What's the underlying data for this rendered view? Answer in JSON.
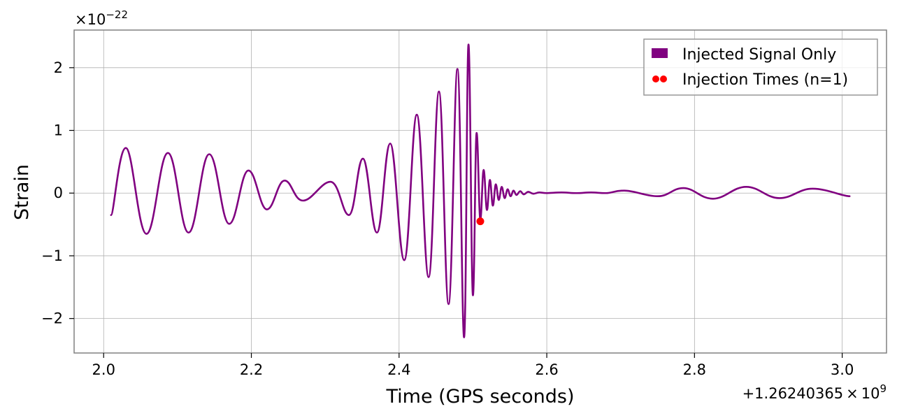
{
  "chart_data": {
    "type": "line",
    "title": "",
    "xlabel": "Time (GPS seconds)",
    "ylabel": "Strain",
    "x_offset_label": "+1.26240365",
    "x_offset_times": "×",
    "x_offset_base": "10",
    "x_offset_exp": "9",
    "y_scale_prefix": "×10",
    "y_scale_exp": "−22",
    "xlim": [
      1.96,
      3.06
    ],
    "ylim": [
      -2.55,
      2.6
    ],
    "xticks": [
      2.0,
      2.2,
      2.4,
      2.6,
      2.8,
      3.0
    ],
    "xtick_labels": [
      "2.0",
      "2.2",
      "2.4",
      "2.6",
      "2.8",
      "3.0"
    ],
    "yticks": [
      -2,
      -1,
      0,
      1,
      2
    ],
    "ytick_labels": [
      "−2",
      "−1",
      "0",
      "1",
      "2"
    ],
    "grid": true,
    "legend_position": "top-right",
    "colors": {
      "signal": "#800080",
      "injection": "#ff0000",
      "grid": "#b0b0b0",
      "frame": "#808080"
    },
    "series": [
      {
        "name": "Injected Signal Only",
        "x": [
          2.01,
          2.03,
          2.058,
          2.087,
          2.115,
          2.143,
          2.17,
          2.196,
          2.221,
          2.245,
          2.27,
          2.307,
          2.332,
          2.351,
          2.37,
          2.388,
          2.407,
          2.424,
          2.44,
          2.454,
          2.467,
          2.479,
          2.488,
          2.494,
          2.5,
          2.505,
          2.51,
          2.5145,
          2.519,
          2.523,
          2.527,
          2.531,
          2.535,
          2.539,
          2.543,
          2.547,
          2.551,
          2.555,
          2.559,
          2.564,
          2.569,
          2.575,
          2.582,
          2.59,
          2.6,
          2.62,
          2.64,
          2.66,
          2.68,
          2.705,
          2.75,
          2.785,
          2.825,
          2.87,
          2.915,
          2.96,
          3.01
        ],
        "y": [
          -0.35,
          0.72,
          -0.65,
          0.64,
          -0.63,
          0.62,
          -0.49,
          0.36,
          -0.26,
          0.2,
          -0.12,
          0.18,
          -0.35,
          0.55,
          -0.63,
          0.79,
          -1.07,
          1.25,
          -1.34,
          1.62,
          -1.77,
          1.98,
          -2.3,
          2.37,
          -1.63,
          0.96,
          -0.42,
          0.37,
          -0.27,
          0.21,
          -0.2,
          0.14,
          -0.11,
          0.1,
          -0.08,
          0.06,
          -0.05,
          0.04,
          -0.03,
          0.03,
          -0.02,
          0.02,
          -0.01,
          0.01,
          0.0,
          0.01,
          0.0,
          0.01,
          0.0,
          0.04,
          -0.05,
          0.08,
          -0.09,
          0.1,
          -0.08,
          0.07,
          -0.05
        ]
      },
      {
        "name": "Injection Times (n=1)",
        "type": "scatter",
        "x": [
          2.51
        ],
        "y": [
          -0.45
        ]
      }
    ]
  }
}
